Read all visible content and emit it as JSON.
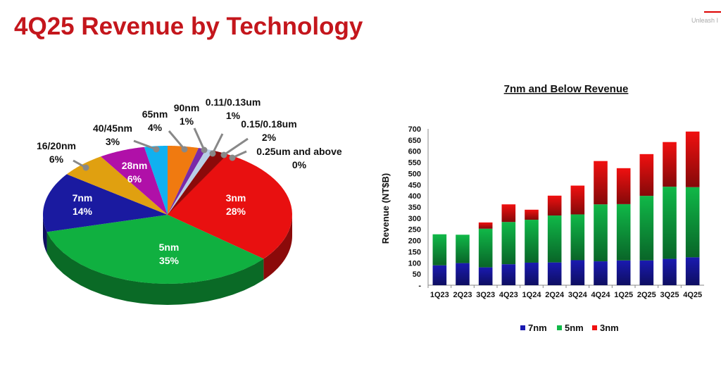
{
  "header": {
    "title": "4Q25 Revenue by Technology",
    "logo_text": "Unleash I"
  },
  "chart_data": [
    {
      "type": "pie",
      "title": "",
      "slices": [
        {
          "label": "65nm",
          "value": 4,
          "color": "#f07a10"
        },
        {
          "label": "90nm",
          "value": 1,
          "color": "#7a2aa8"
        },
        {
          "label": "0.11/0.13um",
          "value": 1,
          "color": "#b8cfe6"
        },
        {
          "label": "0.15/0.18um",
          "value": 2,
          "color": "#8b0a0a"
        },
        {
          "label": "0.25um and above",
          "value": 0,
          "color": "#b01010"
        },
        {
          "label": "3nm",
          "value": 28,
          "color": "#e81010"
        },
        {
          "label": "5nm",
          "value": 35,
          "color": "#10b040"
        },
        {
          "label": "7nm",
          "value": 14,
          "color": "#1a1aa0"
        },
        {
          "label": "16/20nm",
          "value": 6,
          "color": "#e0a010"
        },
        {
          "label": "28nm",
          "value": 6,
          "color": "#b010a8"
        },
        {
          "label": "40/45nm",
          "value": 3,
          "color": "#10b0f0"
        }
      ],
      "value_labels": {
        "65nm": "4%",
        "90nm": "1%",
        "0.11/0.13um": "1%",
        "0.15/0.18um": "2%",
        "0.25um and above": "0%",
        "3nm": "28%",
        "5nm": "35%",
        "7nm": "14%",
        "16/20nm": "6%",
        "28nm": "6%",
        "40/45nm": "3%"
      }
    },
    {
      "type": "bar",
      "stacked": true,
      "title": "7nm and Below Revenue",
      "xlabel": "",
      "ylabel": "Revenue (NT$B)",
      "ylim": [
        0,
        700
      ],
      "yticks": [
        "-",
        "50",
        "100",
        "150",
        "200",
        "250",
        "300",
        "350",
        "400",
        "450",
        "500",
        "550",
        "600",
        "650",
        "700"
      ],
      "categories": [
        "1Q23",
        "2Q23",
        "3Q23",
        "4Q23",
        "1Q24",
        "2Q24",
        "3Q24",
        "4Q24",
        "1Q25",
        "2Q25",
        "3Q25",
        "4Q25"
      ],
      "series": [
        {
          "name": "7nm",
          "color": "#1a1ab0",
          "values": [
            89,
            99,
            80,
            94,
            101,
            102,
            112,
            107,
            111,
            111,
            118,
            125
          ]
        },
        {
          "name": "5nm",
          "color": "#10b848",
          "values": [
            139,
            127,
            173,
            189,
            192,
            210,
            205,
            255,
            252,
            289,
            323,
            314
          ]
        },
        {
          "name": "3nm",
          "color": "#f01010",
          "values": [
            0,
            0,
            28,
            79,
            45,
            89,
            129,
            194,
            161,
            187,
            200,
            249
          ]
        }
      ],
      "legend": "bottom"
    }
  ]
}
